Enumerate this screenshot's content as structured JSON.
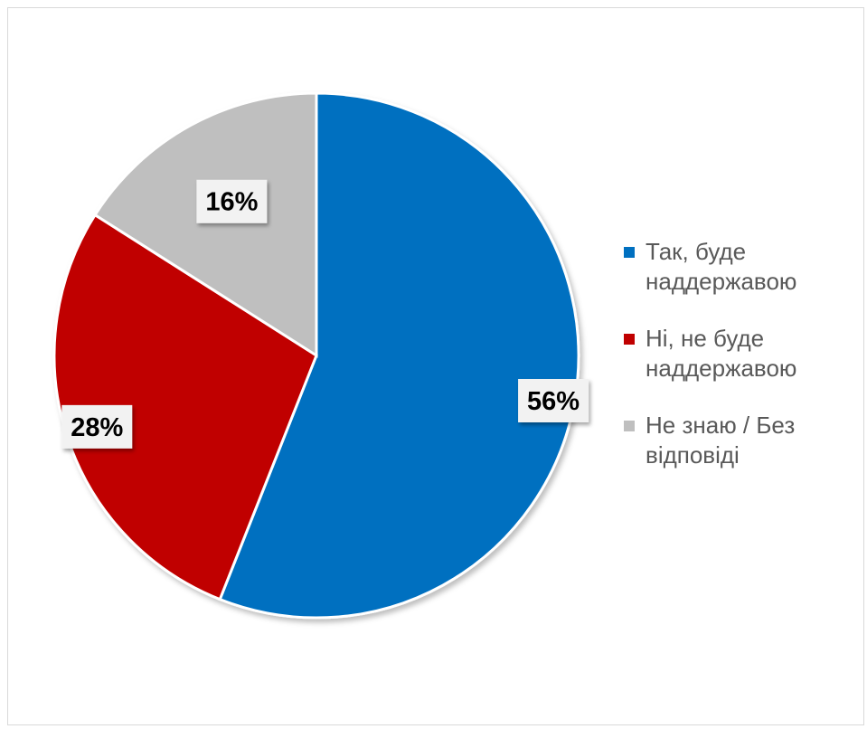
{
  "chart_data": {
    "type": "pie",
    "title": "",
    "categories": [
      "Так, буде наддержавою",
      "Ні, не буде наддержавою",
      "Не знаю / Без відповіді"
    ],
    "values": [
      56,
      28,
      16
    ],
    "data_labels": [
      "56%",
      "28%",
      "16%"
    ],
    "colors": [
      "#0070C0",
      "#C00000",
      "#BFBFBF"
    ],
    "legend_position": "right",
    "start_angle": "12 o'clock, clockwise"
  }
}
